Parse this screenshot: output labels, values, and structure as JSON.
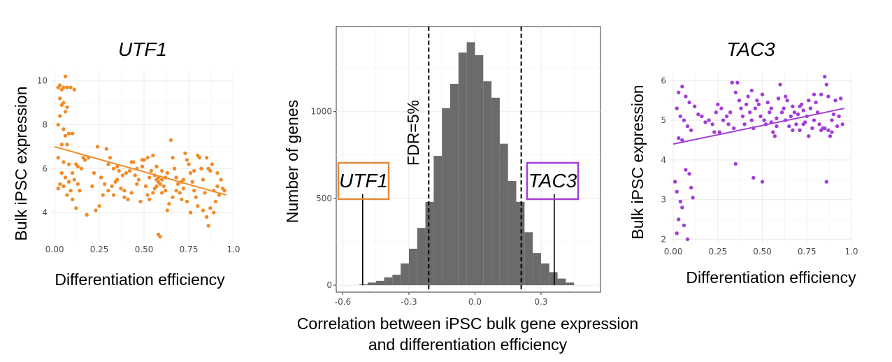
{
  "chart_data": [
    {
      "type": "scatter",
      "title": "UTF1",
      "xlabel": "Differentiation efficiency",
      "ylabel": "Bulk iPSC expression",
      "xlim": [
        -0.02,
        1.0
      ],
      "ylim": [
        2.7,
        10.5
      ],
      "xticks": [
        "0.00",
        "0.25",
        "0.50",
        "0.75",
        "1.0"
      ],
      "xtick_values": [
        0,
        0.25,
        0.5,
        0.75,
        1.0
      ],
      "yticks": [
        "4",
        "6",
        "8",
        "10"
      ],
      "ytick_values": [
        4,
        6,
        8,
        10
      ],
      "color": "#f28c28",
      "grid": true,
      "trend_line": {
        "x": [
          0.0,
          0.96
        ],
        "y": [
          7.0,
          4.8
        ]
      },
      "points": [
        [
          0.02,
          9.7
        ],
        [
          0.03,
          9.8
        ],
        [
          0.04,
          9.6
        ],
        [
          0.06,
          10.2
        ],
        [
          0.05,
          9.7
        ],
        [
          0.07,
          9.7
        ],
        [
          0.09,
          9.7
        ],
        [
          0.11,
          9.6
        ],
        [
          0.03,
          9.2
        ],
        [
          0.05,
          9.0
        ],
        [
          0.04,
          8.9
        ],
        [
          0.07,
          8.8
        ],
        [
          0.06,
          8.6
        ],
        [
          0.03,
          8.4
        ],
        [
          0.02,
          8.0
        ],
        [
          0.05,
          7.8
        ],
        [
          0.06,
          7.5
        ],
        [
          0.08,
          7.6
        ],
        [
          0.1,
          7.6
        ],
        [
          0.04,
          7.1
        ],
        [
          0.07,
          7.1
        ],
        [
          0.02,
          6.5
        ],
        [
          0.05,
          6.3
        ],
        [
          0.08,
          6.2
        ],
        [
          0.12,
          6.2
        ],
        [
          0.17,
          6.4
        ],
        [
          0.19,
          6.5
        ],
        [
          0.1,
          5.8
        ],
        [
          0.04,
          5.8
        ],
        [
          0.06,
          5.6
        ],
        [
          0.03,
          5.3
        ],
        [
          0.02,
          5.1
        ],
        [
          0.05,
          5.2
        ],
        [
          0.08,
          5.4
        ],
        [
          0.11,
          5.5
        ],
        [
          0.13,
          5.3
        ],
        [
          0.09,
          5.0
        ],
        [
          0.07,
          4.8
        ],
        [
          0.1,
          4.6
        ],
        [
          0.12,
          4.2
        ],
        [
          0.18,
          3.9
        ],
        [
          0.23,
          4.1
        ],
        [
          0.25,
          4.3
        ],
        [
          0.22,
          5.8
        ],
        [
          0.24,
          7.0
        ],
        [
          0.29,
          6.9
        ],
        [
          0.31,
          6.5
        ],
        [
          0.3,
          6.2
        ],
        [
          0.33,
          6.0
        ],
        [
          0.35,
          6.1
        ],
        [
          0.36,
          5.9
        ],
        [
          0.38,
          5.7
        ],
        [
          0.34,
          5.4
        ],
        [
          0.32,
          5.2
        ],
        [
          0.37,
          5.1
        ],
        [
          0.39,
          4.7
        ],
        [
          0.41,
          4.6
        ],
        [
          0.43,
          4.9
        ],
        [
          0.28,
          5.3
        ],
        [
          0.27,
          4.8
        ],
        [
          0.26,
          5.6
        ],
        [
          0.4,
          5.8
        ],
        [
          0.42,
          5.9
        ],
        [
          0.44,
          6.3
        ],
        [
          0.46,
          6.0
        ],
        [
          0.45,
          5.7
        ],
        [
          0.47,
          5.5
        ],
        [
          0.49,
          6.1
        ],
        [
          0.5,
          6.4
        ],
        [
          0.51,
          5.2
        ],
        [
          0.52,
          4.8
        ],
        [
          0.48,
          4.5
        ],
        [
          0.53,
          5.6
        ],
        [
          0.54,
          5.9
        ],
        [
          0.55,
          6.6
        ],
        [
          0.56,
          5.7
        ],
        [
          0.57,
          5.5
        ],
        [
          0.58,
          5.4
        ],
        [
          0.59,
          5.3
        ],
        [
          0.6,
          5.5
        ],
        [
          0.61,
          5.2
        ],
        [
          0.57,
          6.1
        ],
        [
          0.55,
          4.9
        ],
        [
          0.53,
          4.6
        ],
        [
          0.58,
          3.0
        ],
        [
          0.59,
          2.9
        ],
        [
          0.62,
          5.0
        ],
        [
          0.64,
          4.4
        ],
        [
          0.63,
          5.8
        ],
        [
          0.65,
          7.3
        ],
        [
          0.66,
          6.5
        ],
        [
          0.67,
          6.0
        ],
        [
          0.68,
          5.6
        ],
        [
          0.69,
          5.3
        ],
        [
          0.7,
          4.9
        ],
        [
          0.71,
          4.6
        ],
        [
          0.72,
          5.1
        ],
        [
          0.73,
          6.7
        ],
        [
          0.74,
          6.4
        ],
        [
          0.75,
          6.2
        ],
        [
          0.76,
          5.8
        ],
        [
          0.77,
          5.4
        ],
        [
          0.78,
          5.0
        ],
        [
          0.79,
          4.7
        ],
        [
          0.8,
          4.3
        ],
        [
          0.81,
          6.5
        ],
        [
          0.82,
          6.0
        ],
        [
          0.83,
          5.5
        ],
        [
          0.84,
          4.9
        ],
        [
          0.85,
          3.8
        ],
        [
          0.86,
          3.4
        ],
        [
          0.87,
          5.9
        ],
        [
          0.88,
          6.2
        ],
        [
          0.89,
          5.0
        ],
        [
          0.9,
          4.5
        ],
        [
          0.91,
          5.2
        ],
        [
          0.92,
          4.8
        ],
        [
          0.93,
          5.5
        ],
        [
          0.94,
          5.1
        ],
        [
          0.95,
          5.0
        ],
        [
          0.87,
          4.2
        ],
        [
          0.83,
          4.1
        ],
        [
          0.76,
          4.0
        ],
        [
          0.74,
          4.5
        ],
        [
          0.71,
          5.4
        ],
        [
          0.68,
          5.0
        ],
        [
          0.66,
          4.7
        ],
        [
          0.63,
          4.1
        ],
        [
          0.6,
          4.9
        ],
        [
          0.56,
          5.1
        ],
        [
          0.52,
          6.5
        ],
        [
          0.49,
          6.4
        ],
        [
          0.46,
          5.3
        ],
        [
          0.43,
          6.3
        ],
        [
          0.39,
          5.0
        ],
        [
          0.35,
          5.5
        ],
        [
          0.33,
          4.8
        ],
        [
          0.3,
          5.0
        ],
        [
          0.21,
          5.2
        ],
        [
          0.15,
          6.0
        ],
        [
          0.13,
          6.1
        ],
        [
          0.14,
          5.0
        ],
        [
          0.16,
          6.5
        ],
        [
          0.72,
          5.5
        ],
        [
          0.78,
          5.9
        ],
        [
          0.8,
          6.6
        ],
        [
          0.85,
          6.5
        ],
        [
          0.86,
          6.0
        ],
        [
          0.89,
          4.0
        ],
        [
          0.91,
          5.8
        ],
        [
          0.62,
          5.6
        ],
        [
          0.6,
          5.9
        ],
        [
          0.58,
          5.6
        ],
        [
          0.57,
          5.2
        ]
      ]
    },
    {
      "type": "bar",
      "title": "",
      "xlabel": "Correlation between iPSC bulk gene expression and differentiation efficiency",
      "xlabel_line1": "Correlation between iPSC bulk gene expression",
      "xlabel_line2": "and differentiation efficiency",
      "ylabel": "Number of genes",
      "xlim": [
        -0.63,
        0.57
      ],
      "ylim": [
        -40,
        1490
      ],
      "xticks": [
        "-0.6",
        "-0.3",
        "0.0",
        "0.3"
      ],
      "xtick_values": [
        -0.6,
        -0.3,
        0.0,
        0.3
      ],
      "yticks": [
        "0",
        "500",
        "1000"
      ],
      "ytick_values": [
        0,
        500,
        1000
      ],
      "bin_width": 0.0375,
      "bin_start": -0.525,
      "counts": [
        5,
        15,
        25,
        45,
        60,
        125,
        210,
        330,
        480,
        745,
        1020,
        1160,
        1340,
        1400,
        1325,
        1175,
        1080,
        815,
        600,
        480,
        305,
        185,
        125,
        75,
        38,
        15
      ],
      "bar_color": "#6b6b6b",
      "fdr_lines": [
        -0.21,
        0.21
      ],
      "fdr_label": "FDR=5%",
      "callouts": [
        {
          "label": "UTF1",
          "x": -0.51,
          "color": "#e58a3a"
        },
        {
          "label": "TAC3",
          "x": 0.36,
          "color": "#a23ed8"
        }
      ]
    },
    {
      "type": "scatter",
      "title": "TAC3",
      "xlabel": "Differentiation efficiency",
      "ylabel": "Bulk iPSC expression",
      "xlim": [
        -0.02,
        1.0
      ],
      "ylim": [
        1.9,
        6.2
      ],
      "xticks": [
        "0.00",
        "0.25",
        "0.50",
        "0.75",
        "1.0"
      ],
      "xtick_values": [
        0,
        0.25,
        0.5,
        0.75,
        1.0
      ],
      "yticks": [
        "2",
        "3",
        "4",
        "5",
        "6"
      ],
      "ytick_values": [
        2,
        3,
        4,
        5,
        6
      ],
      "color": "#a23ed8",
      "grid": true,
      "trend_line": {
        "x": [
          0.0,
          0.96
        ],
        "y": [
          4.4,
          5.3
        ]
      },
      "points": [
        [
          0.05,
          5.85
        ],
        [
          0.03,
          5.7
        ],
        [
          0.07,
          5.6
        ],
        [
          0.09,
          5.45
        ],
        [
          0.02,
          5.3
        ],
        [
          0.04,
          5.1
        ],
        [
          0.06,
          5.0
        ],
        [
          0.08,
          4.85
        ],
        [
          0.1,
          4.75
        ],
        [
          0.12,
          5.35
        ],
        [
          0.14,
          5.15
        ],
        [
          0.03,
          4.55
        ],
        [
          0.05,
          4.5
        ],
        [
          0.01,
          3.45
        ],
        [
          0.02,
          3.2
        ],
        [
          0.04,
          2.95
        ],
        [
          0.05,
          2.8
        ],
        [
          0.03,
          2.5
        ],
        [
          0.06,
          2.35
        ],
        [
          0.02,
          2.15
        ],
        [
          0.08,
          2.0
        ],
        [
          0.07,
          3.75
        ],
        [
          0.09,
          3.65
        ],
        [
          0.1,
          3.3
        ],
        [
          0.11,
          3.05
        ],
        [
          0.16,
          5.1
        ],
        [
          0.18,
          4.95
        ],
        [
          0.2,
          5.0
        ],
        [
          0.22,
          4.9
        ],
        [
          0.24,
          5.2
        ],
        [
          0.25,
          5.4
        ],
        [
          0.26,
          4.7
        ],
        [
          0.28,
          5.0
        ],
        [
          0.3,
          5.1
        ],
        [
          0.32,
          5.2
        ],
        [
          0.33,
          5.95
        ],
        [
          0.35,
          5.7
        ],
        [
          0.36,
          5.95
        ],
        [
          0.37,
          5.5
        ],
        [
          0.38,
          5.3
        ],
        [
          0.39,
          5.1
        ],
        [
          0.4,
          4.9
        ],
        [
          0.41,
          5.4
        ],
        [
          0.42,
          5.6
        ],
        [
          0.43,
          5.2
        ],
        [
          0.44,
          5.0
        ],
        [
          0.45,
          4.8
        ],
        [
          0.46,
          5.3
        ],
        [
          0.47,
          5.5
        ],
        [
          0.48,
          5.4
        ],
        [
          0.49,
          5.1
        ],
        [
          0.5,
          5.65
        ],
        [
          0.51,
          5.0
        ],
        [
          0.52,
          4.9
        ],
        [
          0.53,
          5.45
        ],
        [
          0.54,
          5.2
        ],
        [
          0.55,
          5.3
        ],
        [
          0.56,
          4.7
        ],
        [
          0.57,
          4.6
        ],
        [
          0.58,
          5.05
        ],
        [
          0.59,
          5.55
        ],
        [
          0.6,
          5.9
        ],
        [
          0.61,
          5.2
        ],
        [
          0.62,
          5.3
        ],
        [
          0.63,
          5.0
        ],
        [
          0.64,
          5.5
        ],
        [
          0.65,
          4.85
        ],
        [
          0.66,
          5.1
        ],
        [
          0.67,
          5.35
        ],
        [
          0.68,
          5.2
        ],
        [
          0.69,
          4.9
        ],
        [
          0.7,
          5.15
        ],
        [
          0.71,
          4.75
        ],
        [
          0.72,
          5.4
        ],
        [
          0.73,
          5.25
        ],
        [
          0.74,
          4.95
        ],
        [
          0.75,
          5.1
        ],
        [
          0.76,
          5.5
        ],
        [
          0.77,
          5.3
        ],
        [
          0.78,
          4.8
        ],
        [
          0.79,
          5.0
        ],
        [
          0.8,
          5.45
        ],
        [
          0.81,
          5.2
        ],
        [
          0.82,
          4.9
        ],
        [
          0.83,
          5.65
        ],
        [
          0.84,
          4.8
        ],
        [
          0.85,
          6.1
        ],
        [
          0.86,
          5.9
        ],
        [
          0.87,
          5.6
        ],
        [
          0.88,
          4.6
        ],
        [
          0.89,
          4.7
        ],
        [
          0.9,
          5.15
        ],
        [
          0.91,
          5.5
        ],
        [
          0.92,
          4.85
        ],
        [
          0.93,
          5.1
        ],
        [
          0.94,
          5.55
        ],
        [
          0.95,
          4.9
        ],
        [
          0.35,
          3.9
        ],
        [
          0.45,
          3.55
        ],
        [
          0.5,
          3.45
        ],
        [
          0.86,
          3.45
        ],
        [
          0.23,
          4.7
        ],
        [
          0.27,
          5.3
        ],
        [
          0.31,
          4.9
        ],
        [
          0.34,
          4.8
        ],
        [
          0.44,
          5.75
        ],
        [
          0.55,
          4.95
        ],
        [
          0.58,
          4.85
        ],
        [
          0.63,
          5.6
        ],
        [
          0.67,
          4.75
        ],
        [
          0.73,
          4.9
        ],
        [
          0.79,
          5.65
        ],
        [
          0.83,
          4.75
        ],
        [
          0.85,
          4.8
        ],
        [
          0.87,
          4.75
        ],
        [
          0.89,
          5.0
        ],
        [
          0.76,
          4.6
        ],
        [
          0.71,
          5.35
        ]
      ]
    }
  ]
}
